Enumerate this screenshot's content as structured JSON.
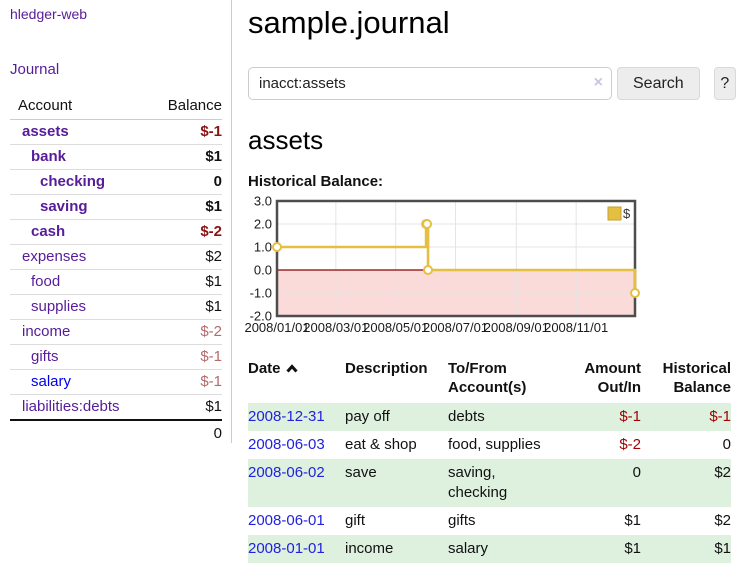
{
  "app": {
    "brand": "hledger-web"
  },
  "nav": {
    "journal": "Journal"
  },
  "colors": {
    "link_purple": "#571c99",
    "link_blue": "#0000ee",
    "negative_strong": "#8c1212",
    "negative_dim": "#b46a6a",
    "negative_table": "#a40000",
    "row_stripe_green": "#def0de",
    "chart_gold": "#e4bf42",
    "chart_negative_region": "#fbdada",
    "chart_zero_line": "#8b0000"
  },
  "sidebar": {
    "header": {
      "account": "Account",
      "balance": "Balance"
    },
    "accounts": [
      {
        "name": "assets",
        "balance": "$-1",
        "depth": 1,
        "bold": true,
        "neg": "strong",
        "blue": false
      },
      {
        "name": "bank",
        "balance": "$1",
        "depth": 2,
        "bold": true,
        "neg": "",
        "blue": false
      },
      {
        "name": "checking",
        "balance": "0",
        "depth": 3,
        "bold": true,
        "neg": "",
        "blue": false
      },
      {
        "name": "saving",
        "balance": "$1",
        "depth": 3,
        "bold": true,
        "neg": "",
        "blue": false
      },
      {
        "name": "cash",
        "balance": "$-2",
        "depth": 2,
        "bold": true,
        "neg": "strong",
        "blue": false
      },
      {
        "name": "expenses",
        "balance": "$2",
        "depth": 1,
        "bold": false,
        "neg": "",
        "blue": false
      },
      {
        "name": "food",
        "balance": "$1",
        "depth": 2,
        "bold": false,
        "neg": "",
        "blue": false
      },
      {
        "name": "supplies",
        "balance": "$1",
        "depth": 2,
        "bold": false,
        "neg": "",
        "blue": false
      },
      {
        "name": "income",
        "balance": "$-2",
        "depth": 1,
        "bold": false,
        "neg": "dim",
        "blue": false
      },
      {
        "name": "gifts",
        "balance": "$-1",
        "depth": 2,
        "bold": false,
        "neg": "dim",
        "blue": false
      },
      {
        "name": "salary",
        "balance": "$-1",
        "depth": 2,
        "bold": false,
        "neg": "dim",
        "blue": true
      },
      {
        "name": "liabilities:debts",
        "balance": "$1",
        "depth": 1,
        "bold": false,
        "neg": "",
        "blue": false
      }
    ],
    "total": "0"
  },
  "header": {
    "title": "sample.journal"
  },
  "search": {
    "value": "inacct:assets",
    "clear_icon": "×",
    "button_label": "Search",
    "help_label": "?"
  },
  "main": {
    "account_title": "assets",
    "chart_title": "Historical Balance:"
  },
  "chart_data": {
    "type": "line",
    "title": "Historical Balance:",
    "step": true,
    "legend": "$",
    "x_range": [
      "2008/01/01",
      "2008/12/31"
    ],
    "ylim": [
      -2.0,
      3.0
    ],
    "y_ticks": [
      {
        "value": 3.0,
        "label": "3.0"
      },
      {
        "value": 2.0,
        "label": "2.0"
      },
      {
        "value": 1.0,
        "label": "1.0"
      },
      {
        "value": 0.0,
        "label": "0.0"
      },
      {
        "value": -1.0,
        "label": "-1.0"
      },
      {
        "value": -2.0,
        "label": "-2.0"
      }
    ],
    "x_ticks": [
      "2008/01/01",
      "2008/03/01",
      "2008/05/01",
      "2008/07/01",
      "2008/09/01",
      "2008/11/01"
    ],
    "series": [
      {
        "name": "$",
        "color": "#e4bf42",
        "points": [
          {
            "date": "2008/01/01",
            "value": 1.0
          },
          {
            "date": "2008/06/01",
            "value": 2.0
          },
          {
            "date": "2008/06/02",
            "value": 2.0
          },
          {
            "date": "2008/06/03",
            "value": 0.0
          },
          {
            "date": "2008/12/31",
            "value": -1.0
          }
        ]
      }
    ]
  },
  "register": {
    "headers": {
      "date": "Date",
      "description": "Description",
      "tofrom_line1": "To/From",
      "tofrom_line2": "Account(s)",
      "amount_line1": "Amount",
      "amount_line2": "Out/In",
      "balance_line1": "Historical",
      "balance_line2": "Balance"
    },
    "rows": [
      {
        "date": "2008-12-31",
        "description": "pay off",
        "accounts": "debts",
        "amount": "$-1",
        "amount_neg": true,
        "balance": "$-1",
        "balance_neg": true
      },
      {
        "date": "2008-06-03",
        "description": "eat & shop",
        "accounts": "food, supplies",
        "amount": "$-2",
        "amount_neg": true,
        "balance": "0",
        "balance_neg": false
      },
      {
        "date": "2008-06-02",
        "description": "save",
        "accounts": "saving, checking",
        "amount": "0",
        "amount_neg": false,
        "balance": "$2",
        "balance_neg": false
      },
      {
        "date": "2008-06-01",
        "description": "gift",
        "accounts": "gifts",
        "amount": "$1",
        "amount_neg": false,
        "balance": "$2",
        "balance_neg": false
      },
      {
        "date": "2008-01-01",
        "description": "income",
        "accounts": "salary",
        "amount": "$1",
        "amount_neg": false,
        "balance": "$1",
        "balance_neg": false
      }
    ]
  }
}
